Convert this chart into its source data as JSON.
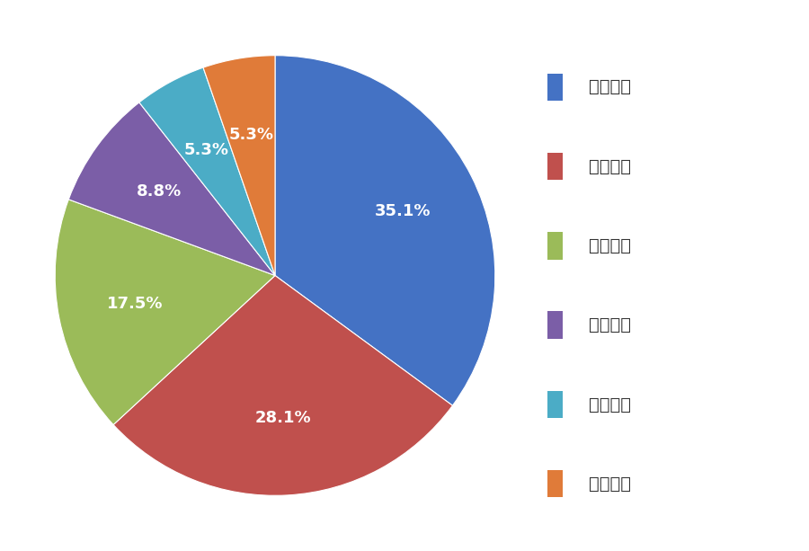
{
  "labels": [
    "华东地区",
    "华中地区",
    "华南地区",
    "华北地区",
    "东北地区",
    "西北地区"
  ],
  "values": [
    35.1,
    28.1,
    17.5,
    8.8,
    5.3,
    5.3
  ],
  "colors": [
    "#4472C4",
    "#C0504D",
    "#9BBB59",
    "#7B5EA7",
    "#4BACC6",
    "#E07B39"
  ],
  "legend_labels": [
    "华东地区",
    "华中地区",
    "华南地区",
    "华北地区",
    "东北地区",
    "西北地区"
  ],
  "text_color": "#FFFFFF",
  "background_color": "#FFFFFF",
  "startangle": 90,
  "label_fontsize": 13,
  "legend_fontsize": 14
}
